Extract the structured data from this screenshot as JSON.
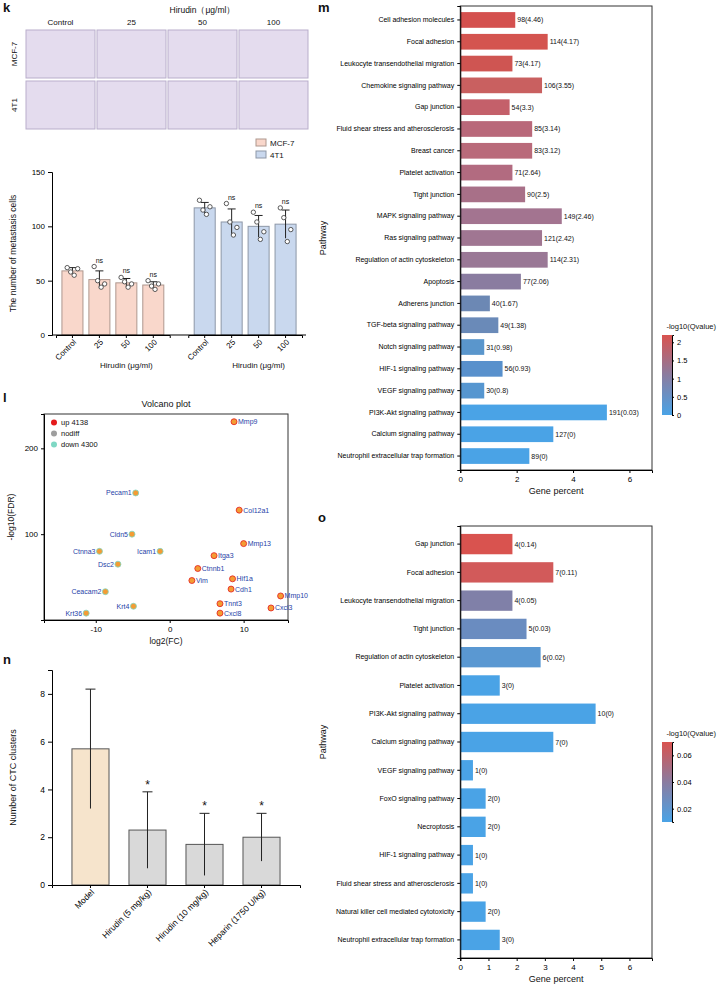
{
  "image_grid": {
    "panel": "k",
    "title": "Hirudin（μg/ml）",
    "columns": [
      "Control",
      "25",
      "50",
      "100"
    ],
    "rows": [
      "MCF-7",
      "4T1"
    ]
  },
  "chart_data": [
    {
      "type": "bar",
      "categories": [
        "Control",
        "25",
        "50",
        "100"
      ],
      "xlabel": "Hirudin (μg/ml)",
      "ylabel": "The number of metastasis cells",
      "ylim": [
        0,
        150
      ],
      "yticks": [
        0,
        50,
        100,
        150
      ],
      "legend": "upper right",
      "series": [
        {
          "name": "MCF-7",
          "color": "#f9d7cb",
          "values": [
            59,
            51,
            48,
            46
          ],
          "errors": [
            3,
            8,
            4,
            3
          ],
          "points": [
            [
              62,
              58,
              55,
              61
            ],
            [
              63,
              50,
              44,
              47
            ],
            [
              53,
              49,
              44,
              47
            ],
            [
              50,
              45,
              42,
              47
            ]
          ],
          "significance": [
            null,
            "ns",
            "ns",
            "ns"
          ]
        },
        {
          "name": "4T1",
          "color": "#c9d8ee",
          "values": [
            117,
            104,
            100,
            102
          ],
          "errors": [
            5,
            12,
            10,
            13
          ],
          "points": [
            [
              124,
              115,
              111,
              118
            ],
            [
              121,
              104,
              92,
              99
            ],
            [
              113,
              104,
              88,
              95
            ],
            [
              117,
              108,
              86,
              97
            ]
          ],
          "significance": [
            null,
            "ns",
            "ns",
            "ns"
          ]
        }
      ]
    },
    {
      "panel": "l",
      "type": "scatter",
      "title": "Volcano plot",
      "xlabel": "log2(FC)",
      "ylabel": "-log10(FDR)",
      "xlim": [
        -17,
        16
      ],
      "xticks": [
        -10,
        0,
        10
      ],
      "ylim": [
        0,
        240
      ],
      "yticks": [
        100,
        200
      ],
      "legend": "upper left",
      "series": [
        {
          "name": "up 4138",
          "color": "#e41a1c",
          "labels": [
            "Mmp9",
            "Col12a1",
            "Mmp13",
            "Itga3",
            "Ctnnb1",
            "Vim",
            "Hif1a",
            "Cdh1",
            "Tnnt3",
            "Cxcl8",
            "Cxcl3",
            "Mmp10"
          ],
          "x": [
            8.7,
            9.4,
            10,
            6,
            3.8,
            3,
            8.5,
            8.3,
            6.8,
            6.8,
            13.7,
            15
          ],
          "values": [
            231,
            128,
            89,
            75,
            60,
            46,
            48,
            36,
            19,
            8,
            14,
            28
          ]
        },
        {
          "name": "nodiff",
          "color": "#9e9e9e",
          "labels": [],
          "x": [],
          "values": []
        },
        {
          "name": "down 4300",
          "color": "#7fd8c4",
          "labels": [
            "Pecam1",
            "Cldn5",
            "Icam1",
            "Ctnna3",
            "Dsc2",
            "Ceacam2",
            "Krt4",
            "Krt36"
          ],
          "x": [
            -4.6,
            -5.1,
            -1.3,
            -9.5,
            -7,
            -8.7,
            -4.9,
            -11.3
          ],
          "values": [
            148,
            100,
            80,
            80,
            65,
            33,
            16,
            8
          ]
        }
      ]
    },
    {
      "panel": "m",
      "type": "bar",
      "orientation": "horizontal",
      "xlabel": "Gene percent",
      "ylabel": "Pathway",
      "xlim": [
        0,
        6.8
      ],
      "xticks": [
        0,
        2,
        4,
        6
      ],
      "categories": [
        "Cell adhesion molecules",
        "Focal adhesion",
        "Leukocyte transendothelial migration",
        "Chemokine signaling pathway",
        "Gap junction",
        "Fluid shear stress and atherosclerosis",
        "Breast cancer",
        "Platelet activation",
        "Tight junction",
        "MAPK signaling pathway",
        "Ras signaling pathway",
        "Regulation of actin cytoskeleton",
        "Apoptosis",
        "Adherens junction",
        "TGF-beta signaling pathway",
        "Notch signaling pathway",
        "HIF-1 signaling pathway",
        "VEGF signaling pathway",
        "PI3K-Akt signaling pathway",
        "Calcium signaling pathway",
        "Neutrophil extracellular trap formation"
      ],
      "values": [
        1.95,
        3.1,
        1.85,
        2.9,
        1.75,
        2.55,
        2.55,
        1.85,
        2.3,
        3.6,
        2.9,
        3.1,
        2.15,
        1.05,
        1.35,
        0.85,
        1.5,
        0.85,
        5.2,
        3.3,
        2.45
      ],
      "annotations": [
        "98(4.46)",
        "114(4.17)",
        "73(4.17)",
        "106(3.55)",
        "54(3.3)",
        "85(3.14)",
        "83(3.12)",
        "71(2.64)",
        "90(2.5)",
        "149(2.46)",
        "121(2.42)",
        "114(2.31)",
        "77(2.06)",
        "40(1.67)",
        "49(1.38)",
        "31(0.98)",
        "56(0.93)",
        "30(0.8)",
        "191(0.03)",
        "127(0)",
        "89(0)"
      ],
      "colors": [
        "#d4504e",
        "#d4544f",
        "#cf5552",
        "#c96060",
        "#c4606a",
        "#b9687a",
        "#b96a7a",
        "#b26b80",
        "#a87088",
        "#a37490",
        "#a07692",
        "#9a7896",
        "#8a7ca0",
        "#6c88b4",
        "#6a8ab8",
        "#5a96cc",
        "#5890cc",
        "#5696d0",
        "#4aa3e6",
        "#4aa3e6",
        "#4aa3e6"
      ],
      "colorbar": {
        "title": "-log10(Qvalue)",
        "range": [
          0,
          2.2
        ],
        "ticks": [
          0,
          0.5,
          1,
          1.5,
          2
        ],
        "colors": [
          "#4aa3e6",
          "#8a7ca0",
          "#d9534f"
        ]
      }
    },
    {
      "panel": "n",
      "type": "bar",
      "categories": [
        "Model",
        "Hirudin (5 mg/kg)",
        "Hirudin (10 mg/kg)",
        "Heparin (1750 U/kg)"
      ],
      "values": [
        5.7,
        2.3,
        1.7,
        2.0
      ],
      "errors": [
        2.5,
        1.6,
        1.3,
        1.0
      ],
      "colors": [
        "#f6e4cc",
        "#d9d9d9",
        "#d9d9d9",
        "#d9d9d9"
      ],
      "significance": [
        null,
        "*",
        "*",
        "*"
      ],
      "ylabel": "Number of CTC clusters",
      "ylim": [
        0,
        9
      ],
      "yticks": [
        0,
        2,
        4,
        6,
        8
      ]
    },
    {
      "panel": "o",
      "type": "bar",
      "orientation": "horizontal",
      "xlabel": "Gene percent",
      "ylabel": "Pathway",
      "xlim": [
        0,
        6.8
      ],
      "xticks": [
        0,
        1,
        2,
        3,
        4,
        5,
        6
      ],
      "categories": [
        "Gap junction",
        "Focal adhesion",
        "Leukocyte transendothelial migration",
        "Tight junction",
        "Regulation of actin cytoskeleton",
        "Platelet activation",
        "PI3K-Akt signaling pathway",
        "Calcium signaling pathway",
        "VEGF signaling pathway",
        "FoxO signaling pathway",
        "Necroptosis",
        "HIF-1 signaling pathway",
        "Fluid shear stress and atherosclerosis",
        "Natural killer cell mediated cytotoxicity",
        "Neutrophil extracellular trap formation"
      ],
      "values": [
        1.85,
        3.3,
        1.85,
        2.35,
        2.85,
        1.4,
        4.8,
        3.3,
        0.45,
        0.9,
        0.9,
        0.45,
        0.45,
        0.9,
        1.4
      ],
      "annotations": [
        "4(0.14)",
        "7(0.11)",
        "4(0.05)",
        "5(0.03)",
        "6(0.02)",
        "3(0)",
        "10(0)",
        "7(0)",
        "1(0)",
        "2(0)",
        "2(0)",
        "1(0)",
        "1(0)",
        "2(0)",
        "3(0)"
      ],
      "colors": [
        "#d9534f",
        "#d25a5a",
        "#8080a8",
        "#6a8cc0",
        "#5a98d2",
        "#4aa3e6",
        "#4aa3e6",
        "#4aa3e6",
        "#4aa3e6",
        "#4aa3e6",
        "#4aa3e6",
        "#4aa3e6",
        "#4aa3e6",
        "#4aa3e6",
        "#4aa3e6"
      ],
      "colorbar": {
        "title": "-log10(Qvalue)",
        "range": [
          0.01,
          0.07
        ],
        "ticks": [
          0.02,
          0.04,
          0.06
        ],
        "colors": [
          "#4aa3e6",
          "#8a7ca0",
          "#d9534f"
        ]
      }
    }
  ]
}
